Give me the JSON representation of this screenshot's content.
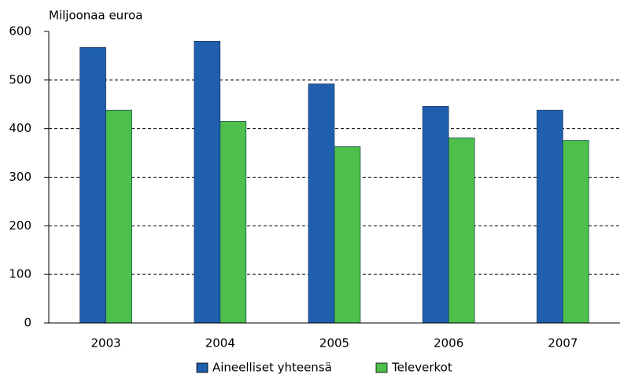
{
  "chart_data": {
    "type": "bar",
    "y_label": "Miljoonaa euroa",
    "categories": [
      "2003",
      "2004",
      "2005",
      "2006",
      "2007"
    ],
    "series": [
      {
        "name": "Aineelliset yhteensä",
        "color": "#1f5fad",
        "values": [
          567,
          580,
          492,
          446,
          438
        ]
      },
      {
        "name": "Televerkot",
        "color": "#4dbf4a",
        "values": [
          438,
          415,
          363,
          381,
          376
        ]
      }
    ],
    "ylim": [
      0,
      600
    ],
    "yticks": [
      0,
      100,
      200,
      300,
      400,
      500,
      600
    ],
    "grid": true,
    "legend": "bottom"
  }
}
